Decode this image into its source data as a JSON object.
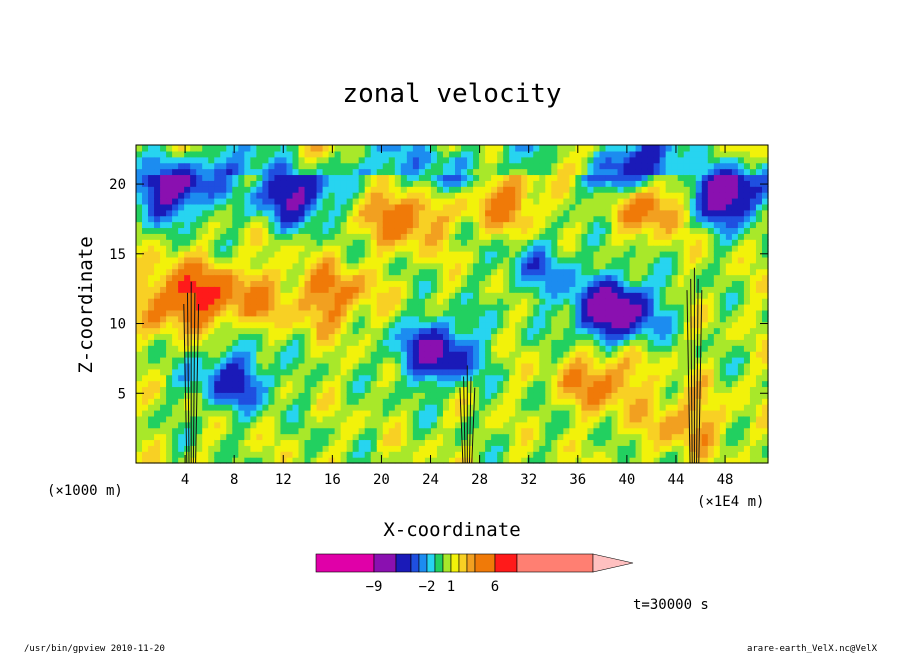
{
  "chart_data": {
    "type": "heatmap",
    "title": "zonal velocity",
    "xlabel": "X-coordinate",
    "ylabel": "Z-coordinate",
    "x_unit": "(×1E4 m)",
    "y_unit": "(×1000 m)",
    "xlim": [
      0,
      51.5
    ],
    "ylim": [
      0,
      22.8
    ],
    "x_ticks": [
      4,
      8,
      12,
      16,
      20,
      24,
      28,
      32,
      36,
      40,
      44,
      48
    ],
    "y_ticks": [
      5,
      10,
      15,
      20
    ],
    "time_label": "t=30000 s",
    "colorbar": {
      "labels": [
        {
          "value": -9,
          "text": "−9"
        },
        {
          "value": -2,
          "text": "−2"
        },
        {
          "value": 1,
          "text": "1"
        },
        {
          "value": 6,
          "text": "6"
        }
      ],
      "bins": [
        {
          "from": -30,
          "to": -9,
          "color": "#e000a8"
        },
        {
          "from": -9,
          "to": -6,
          "color": "#8a10b0"
        },
        {
          "from": -6,
          "to": -4,
          "color": "#1a1ab8"
        },
        {
          "from": -4,
          "to": -3,
          "color": "#1f4fe0"
        },
        {
          "from": -3,
          "to": -2,
          "color": "#1c8cf0"
        },
        {
          "from": -2,
          "to": -1,
          "color": "#27d4f0"
        },
        {
          "from": -1,
          "to": 0,
          "color": "#22d060"
        },
        {
          "from": 0,
          "to": 1,
          "color": "#a8e82a"
        },
        {
          "from": 1,
          "to": 2,
          "color": "#f2f20a"
        },
        {
          "from": 2,
          "to": 3,
          "color": "#f8d024"
        },
        {
          "from": 3,
          "to": 4,
          "color": "#f2a020"
        },
        {
          "from": 4,
          "to": 6,
          "color": "#f07a08"
        },
        {
          "from": 6,
          "to": 9,
          "color": "#ff1a1a"
        },
        {
          "from": 9,
          "to": 30,
          "color": "#ff7f72"
        }
      ]
    },
    "field_features": [
      {
        "x": 3,
        "z": 20,
        "u": -8
      },
      {
        "x": 13,
        "z": 19.5,
        "u": -7
      },
      {
        "x": 25,
        "z": 21,
        "u": -5
      },
      {
        "x": 40,
        "z": 21,
        "u": -7
      },
      {
        "x": 48,
        "z": 19.5,
        "u": -9
      },
      {
        "x": 39,
        "z": 11,
        "u": -9
      },
      {
        "x": 24.5,
        "z": 8,
        "u": -7
      },
      {
        "x": 8,
        "z": 6,
        "u": -5
      },
      {
        "x": 22,
        "z": 18,
        "u": 5
      },
      {
        "x": 30,
        "z": 19,
        "u": 4
      },
      {
        "x": 42,
        "z": 19,
        "u": 6
      },
      {
        "x": 16,
        "z": 12,
        "u": 4
      },
      {
        "x": 9,
        "z": 12,
        "u": 3
      },
      {
        "x": 4,
        "z": 12,
        "u": 6
      },
      {
        "x": 38,
        "z": 6,
        "u": 4
      },
      {
        "x": 33,
        "z": 14,
        "u": -3
      },
      {
        "x": 45,
        "z": 3,
        "u": 3
      }
    ],
    "towers_x": [
      4.5,
      27,
      45.5
    ],
    "tower_tops_z": [
      13,
      7,
      14
    ]
  },
  "footer": {
    "left": "/usr/bin/gpview  2010-11-20",
    "right": "arare-earth_VelX.nc@VelX"
  }
}
